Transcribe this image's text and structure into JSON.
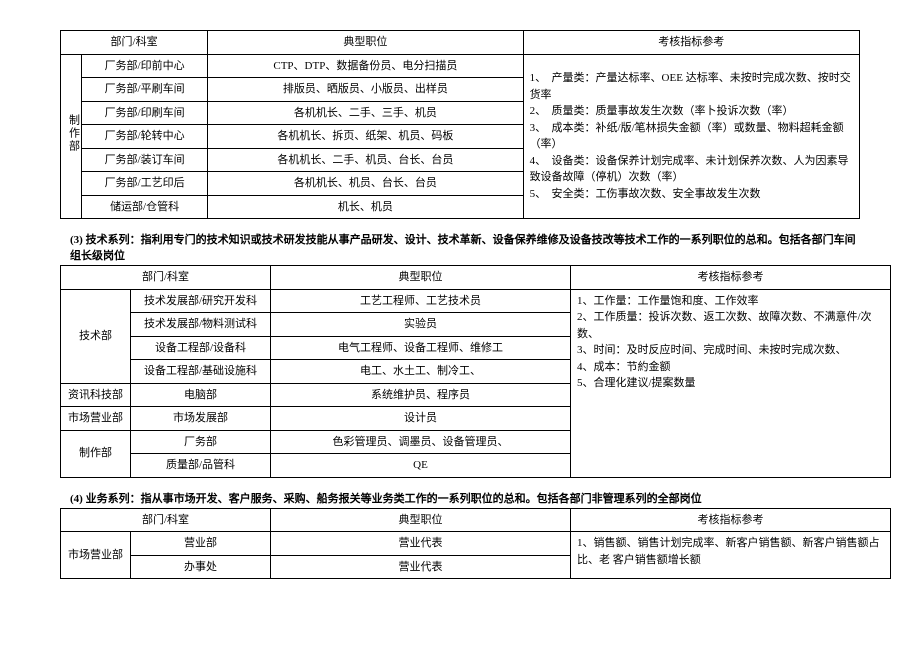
{
  "headers": {
    "dept": "部门/科室",
    "position": "典型职位",
    "kpi": "考核指标参考"
  },
  "section2": {
    "groupLabel": "制作部",
    "rows": [
      {
        "sub": "厂务部/印前中心",
        "pos": "CTP、DTP、数据备份员、电分扫描员"
      },
      {
        "sub": "厂务部/平刷车间",
        "pos": "排版员、晒版员、小版员、出样员"
      },
      {
        "sub": "厂务部/印刷车间",
        "pos": "各机机长、二手、三手、机员"
      },
      {
        "sub": "厂务部/轮转中心",
        "pos": "各机机长、拆页、纸架、机员、码板"
      },
      {
        "sub": "厂务部/装订车间",
        "pos": "各机机长、二手、机员、台长、台员"
      },
      {
        "sub": "厂务部/工艺印后",
        "pos": "各机机长、机员、台长、台员"
      },
      {
        "sub": "储运部/仓管科",
        "pos": "机长、机员"
      }
    ],
    "kpi": "1、　产量类：产量达标率、OEE 达标率、未按时完成次数、按时交货率\n2、　质量类：质量事故发生次数（率卜投诉次数（率）\n3、　成本类：补纸/版/笔林损失金额（率）或数量、物料超耗金额（率）\n4、　设备类：设备保养计划完成率、未计划保养次数、人为因素导致设备故障（停机）次数（率）\n5、　安全类：工伤事故次数、安全事故发生次数"
  },
  "section3": {
    "caption": "(3) 技术系列：指利用专门的技术知识或技术研发技能从事产品研发、设计、技术革新、设备保养维修及设备技改等技术工作的一系列职位的总和。包括各部门车间组长级岗位",
    "rows": [
      {
        "group": "技术部",
        "span": 4,
        "sub": "技术发展部/研究开发科",
        "pos": "工艺工程师、工艺技术员"
      },
      {
        "sub": "技术发展部/物料测试科",
        "pos": "实验员"
      },
      {
        "sub": "设备工程部/设备科",
        "pos": "电气工程师、设备工程师、维修工"
      },
      {
        "sub": "设备工程部/基础设施科",
        "pos": "电工、水土工、制冷工、"
      },
      {
        "group": "资讯科技部",
        "span": 1,
        "sub": "电脑部",
        "pos": "系统维护员、程序员"
      },
      {
        "group": "市场营业部",
        "span": 1,
        "sub": "市场发展部",
        "pos": "设计员"
      },
      {
        "group": "制作部",
        "span": 2,
        "sub": "厂务部",
        "pos": "色彩管理员、调墨员、设备管理员、"
      },
      {
        "sub": "质量部/品管科",
        "pos": "QE"
      }
    ],
    "kpi": "1、工作量：工作量饱和度、工作效率\n2、工作质量：投诉次数、返工次数、故障次数、不满意件/次数、\n3、时间：及时反应时间、完成时间、未按时完成次数、\n4、成本：节約金额\n5、合理化建议/提案数量"
  },
  "section4": {
    "caption": "(4) 业务系列：指从事市场开发、客户服务、采购、船务报关等业务类工作的一系列职位的总和。包括各部门非管理系列的全部岗位",
    "rows": [
      {
        "group": "市场营业部",
        "span": 2,
        "sub": "营业部",
        "pos": "营业代表"
      },
      {
        "sub": "办事处",
        "pos": "营业代表"
      }
    ],
    "kpi": "1、销售额、销售计划完成率、新客户销售额、新客户销售额占比、老 客户销售额增长额 "
  }
}
